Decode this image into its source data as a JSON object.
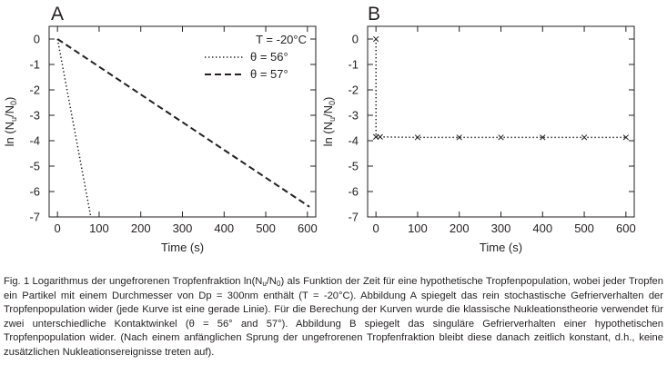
{
  "figure": {
    "panels": [
      {
        "letter": "A"
      },
      {
        "letter": "B"
      }
    ]
  },
  "caption": {
    "part1": "Fig. 1 Logarithmus der ungefrorenen Tropfenfraktion ln(N",
    "sub1": "u",
    "part2": "/N",
    "sub2": "0",
    "part3": ") als Funktion der Zeit für eine hypothetische Tropfenpopulation, wobei jeder Tropfen ein Partikel mit einem Durchmesser von Dp = 300nm enthält (T = -20°C). Abbildung A spiegelt das rein stochastische Gefrierverhalten der Tropfenpopulation wider (jede Kurve ist eine gerade Linie). Für die Berechung der Kurven wurde die klassische Nukleationstheorie verwendet für zwei unterschiedliche Kontaktwinkel (θ = 56° and 57°). Abbildung B spiegelt das singuläre Gefrierverhalten einer hypothetischen Tropfenpopulation wider. (Nach einem anfänglichen Sprung der ungefrorenen Tropfenfraktion bleibt diese danach zeitlich konstant, d.h., keine zusätzlichen Nukleationsereignisse treten auf)."
  },
  "chart_data": [
    {
      "type": "line",
      "panel": "A",
      "xlabel": "Time (s)",
      "ylabel_parts": [
        "ln (N",
        "u",
        "/N",
        "0",
        ")"
      ],
      "xlim": [
        -20,
        620
      ],
      "ylim": [
        -7,
        0.5
      ],
      "xticks": [
        0,
        100,
        200,
        300,
        400,
        500,
        600
      ],
      "yticks": [
        0,
        -1,
        -2,
        -3,
        -4,
        -5,
        -6,
        -7
      ],
      "grid": false,
      "legend_title": "T = -20°C",
      "legend_position": "top-right",
      "series": [
        {
          "name": "θ = 56°",
          "style": "dotted",
          "x": [
            0,
            80
          ],
          "y": [
            0,
            -7
          ]
        },
        {
          "name": "θ = 57°",
          "style": "dashed",
          "x": [
            0,
            605
          ],
          "y": [
            0,
            -6.6
          ]
        }
      ]
    },
    {
      "type": "line",
      "panel": "B",
      "xlabel": "Time (s)",
      "ylabel_parts": [
        "ln (N",
        "u",
        "/N",
        "0",
        ")"
      ],
      "xlim": [
        -20,
        620
      ],
      "ylim": [
        -7,
        0.5
      ],
      "xticks": [
        0,
        100,
        200,
        300,
        400,
        500,
        600
      ],
      "yticks": [
        0,
        -1,
        -2,
        -3,
        -4,
        -5,
        -6,
        -7
      ],
      "grid": false,
      "series": [
        {
          "name": "",
          "style": "dotted",
          "marker": "x",
          "x": [
            0,
            0,
            10,
            100,
            200,
            300,
            400,
            500,
            600
          ],
          "y": [
            0,
            -3.85,
            -3.85,
            -3.87,
            -3.87,
            -3.87,
            -3.87,
            -3.87,
            -3.87
          ]
        }
      ]
    }
  ]
}
